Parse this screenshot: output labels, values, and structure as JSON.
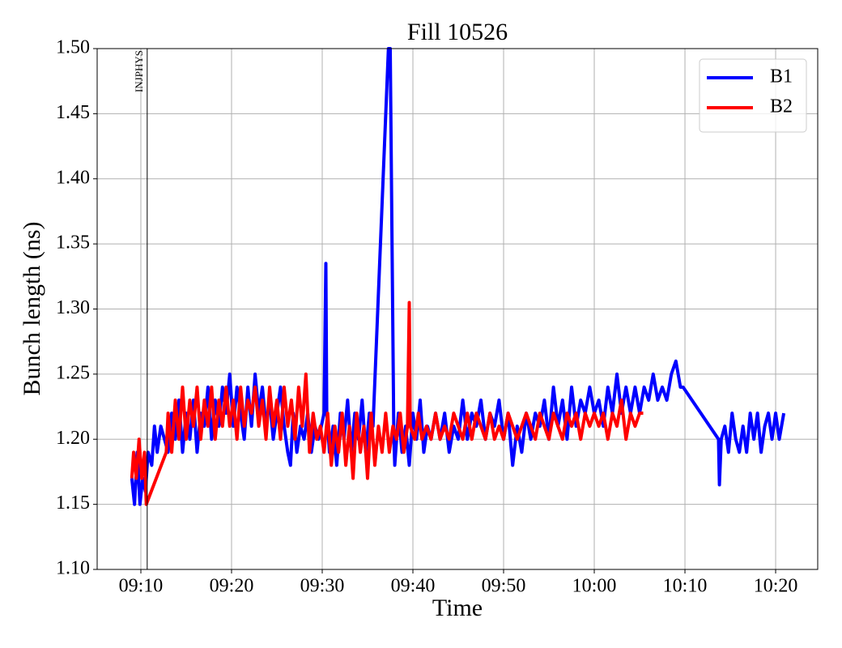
{
  "chart_data": {
    "type": "line",
    "title": "Fill 10526",
    "x_label": "Time",
    "y_label": "Bunch length (ns)",
    "xlim": [
      545.18,
      624.64
    ],
    "ylim": [
      1.1,
      1.5
    ],
    "xticks": [
      {
        "value": 550,
        "label": "09:10"
      },
      {
        "value": 560,
        "label": "09:20"
      },
      {
        "value": 570,
        "label": "09:30"
      },
      {
        "value": 580,
        "label": "09:40"
      },
      {
        "value": 590,
        "label": "09:50"
      },
      {
        "value": 600,
        "label": "10:00"
      },
      {
        "value": 610,
        "label": "10:10"
      },
      {
        "value": 620,
        "label": "10:20"
      }
    ],
    "yticks": [
      {
        "value": 1.1,
        "label": "1.10"
      },
      {
        "value": 1.15,
        "label": "1.15"
      },
      {
        "value": 1.2,
        "label": "1.20"
      },
      {
        "value": 1.25,
        "label": "1.25"
      },
      {
        "value": 1.3,
        "label": "1.30"
      },
      {
        "value": 1.35,
        "label": "1.35"
      },
      {
        "value": 1.4,
        "label": "1.40"
      },
      {
        "value": 1.45,
        "label": "1.45"
      },
      {
        "value": 1.5,
        "label": "1.50"
      }
    ],
    "grid": true,
    "legend": "upper right",
    "annotations": [
      {
        "x": 550.7,
        "label": "INJPHYS"
      }
    ],
    "series": [
      {
        "name": "B1",
        "color": "#0000ff",
        "x": [
          549.0,
          549.3,
          549.6,
          549.9,
          550.2,
          550.5,
          550.8,
          551.2,
          551.5,
          551.8,
          552.2,
          552.6,
          553.0,
          553.4,
          553.8,
          554.2,
          554.6,
          555.0,
          555.4,
          555.8,
          556.2,
          556.6,
          557.0,
          557.4,
          557.8,
          558.2,
          558.6,
          559.0,
          559.4,
          559.8,
          560.2,
          560.6,
          561.0,
          561.4,
          561.8,
          562.2,
          562.6,
          563.0,
          563.4,
          563.8,
          564.2,
          564.6,
          565.0,
          565.4,
          565.8,
          566.2,
          566.5,
          566.8,
          567.2,
          567.6,
          568.0,
          568.4,
          568.8,
          569.2,
          569.6,
          570.2,
          570.4,
          570.5,
          570.8,
          571.2,
          571.6,
          572.0,
          572.4,
          572.8,
          573.2,
          573.6,
          574.0,
          574.4,
          574.8,
          575.2,
          575.6,
          577.3,
          577.5,
          577.9,
          578.0,
          578.4,
          578.8,
          579.2,
          579.6,
          580.0,
          580.4,
          580.8,
          581.2,
          581.6,
          582.0,
          582.5,
          583,
          583.5,
          584,
          584.5,
          585,
          585.5,
          586,
          586.5,
          587,
          587.5,
          588,
          588.5,
          589,
          589.5,
          590,
          590.5,
          591,
          591.5,
          592,
          592.5,
          593,
          593.5,
          594,
          594.5,
          595,
          595.5,
          596,
          596.5,
          597,
          597.5,
          598,
          598.5,
          599,
          599.5,
          600,
          600.5,
          601,
          601.5,
          602,
          602.5,
          603,
          603.5,
          604,
          604.5,
          605,
          605.5,
          606,
          606.5,
          607,
          607.5,
          608,
          608.5,
          609,
          609.5,
          609.8,
          613.7,
          613.8,
          614.0,
          614.4,
          614.8,
          615.2,
          615.6,
          616,
          616.4,
          616.8,
          617.2,
          617.6,
          618,
          618.4,
          618.8,
          619.2,
          619.6,
          620,
          620.4,
          620.9
        ],
        "values": [
          1.17,
          1.15,
          1.19,
          1.15,
          1.17,
          1.16,
          1.19,
          1.18,
          1.21,
          1.19,
          1.21,
          1.2,
          1.19,
          1.22,
          1.2,
          1.23,
          1.19,
          1.22,
          1.2,
          1.23,
          1.19,
          1.22,
          1.21,
          1.24,
          1.2,
          1.23,
          1.21,
          1.24,
          1.22,
          1.25,
          1.21,
          1.24,
          1.22,
          1.2,
          1.24,
          1.21,
          1.25,
          1.22,
          1.24,
          1.21,
          1.23,
          1.2,
          1.22,
          1.24,
          1.21,
          1.19,
          1.18,
          1.22,
          1.19,
          1.21,
          1.2,
          1.22,
          1.19,
          1.21,
          1.2,
          1.22,
          1.335,
          1.22,
          1.19,
          1.21,
          1.18,
          1.22,
          1.2,
          1.23,
          1.19,
          1.22,
          1.2,
          1.23,
          1.19,
          1.22,
          1.21,
          1.5,
          1.5,
          1.2,
          1.18,
          1.22,
          1.19,
          1.21,
          1.18,
          1.22,
          1.2,
          1.23,
          1.19,
          1.21,
          1.2,
          1.22,
          1.2,
          1.22,
          1.19,
          1.21,
          1.2,
          1.23,
          1.2,
          1.22,
          1.21,
          1.23,
          1.2,
          1.22,
          1.21,
          1.23,
          1.2,
          1.22,
          1.18,
          1.21,
          1.19,
          1.22,
          1.2,
          1.22,
          1.21,
          1.23,
          1.2,
          1.24,
          1.21,
          1.23,
          1.2,
          1.24,
          1.21,
          1.23,
          1.22,
          1.24,
          1.22,
          1.23,
          1.21,
          1.24,
          1.22,
          1.25,
          1.22,
          1.24,
          1.22,
          1.24,
          1.22,
          1.24,
          1.23,
          1.25,
          1.23,
          1.24,
          1.23,
          1.25,
          1.26,
          1.24,
          1.24,
          1.2,
          1.165,
          1.2,
          1.21,
          1.19,
          1.22,
          1.2,
          1.19,
          1.21,
          1.19,
          1.22,
          1.2,
          1.22,
          1.19,
          1.21,
          1.22,
          1.2,
          1.22,
          1.2,
          1.22
        ]
      },
      {
        "name": "B2",
        "color": "#ff0000",
        "x": [
          549.0,
          549.2,
          549.5,
          549.8,
          550.1,
          550.4,
          550.6,
          552.8,
          553.0,
          553.4,
          553.8,
          554.2,
          554.6,
          555.0,
          555.4,
          555.8,
          556.2,
          556.6,
          557.0,
          557.4,
          557.8,
          558.2,
          558.6,
          559.0,
          559.4,
          559.8,
          560.2,
          560.6,
          561.0,
          561.4,
          561.8,
          562.2,
          562.6,
          563.0,
          563.4,
          563.8,
          564.2,
          564.6,
          565.0,
          565.4,
          565.8,
          566.2,
          566.6,
          567.0,
          567.4,
          567.8,
          568.2,
          568.6,
          569.0,
          569.4,
          569.8,
          570.2,
          570.6,
          571.0,
          571.4,
          571.8,
          572.2,
          572.6,
          573.0,
          573.4,
          573.8,
          574.2,
          574.6,
          575.0,
          575.4,
          575.8,
          576.2,
          576.6,
          577.0,
          577.4,
          577.8,
          578.2,
          578.6,
          579.0,
          579.4,
          579.6,
          579.7,
          580.2,
          580.6,
          581,
          581.5,
          582,
          582.5,
          583,
          583.5,
          584,
          584.5,
          585,
          585.5,
          586,
          586.5,
          587,
          587.5,
          588,
          588.5,
          589,
          589.5,
          590,
          590.5,
          591,
          591.5,
          592,
          592.5,
          593,
          593.5,
          594,
          594.5,
          595,
          595.5,
          596,
          596.5,
          597,
          597.5,
          598,
          598.5,
          599,
          599.5,
          600,
          600.5,
          601,
          601.5,
          602,
          602.5,
          603,
          603.5,
          604,
          604.5,
          605,
          605.4
        ],
        "values": [
          1.17,
          1.19,
          1.17,
          1.2,
          1.17,
          1.19,
          1.15,
          1.19,
          1.22,
          1.19,
          1.23,
          1.2,
          1.24,
          1.2,
          1.23,
          1.21,
          1.24,
          1.2,
          1.23,
          1.21,
          1.24,
          1.2,
          1.23,
          1.21,
          1.24,
          1.21,
          1.23,
          1.2,
          1.24,
          1.21,
          1.23,
          1.22,
          1.24,
          1.21,
          1.23,
          1.2,
          1.24,
          1.21,
          1.23,
          1.2,
          1.24,
          1.21,
          1.23,
          1.2,
          1.24,
          1.21,
          1.25,
          1.19,
          1.22,
          1.2,
          1.21,
          1.19,
          1.22,
          1.18,
          1.21,
          1.19,
          1.22,
          1.18,
          1.21,
          1.17,
          1.22,
          1.19,
          1.21,
          1.17,
          1.22,
          1.18,
          1.21,
          1.19,
          1.22,
          1.19,
          1.21,
          1.2,
          1.22,
          1.19,
          1.21,
          1.305,
          1.21,
          1.2,
          1.22,
          1.2,
          1.21,
          1.2,
          1.22,
          1.2,
          1.21,
          1.2,
          1.22,
          1.21,
          1.2,
          1.22,
          1.2,
          1.22,
          1.21,
          1.2,
          1.22,
          1.2,
          1.21,
          1.2,
          1.22,
          1.21,
          1.2,
          1.21,
          1.22,
          1.21,
          1.2,
          1.22,
          1.21,
          1.2,
          1.22,
          1.21,
          1.2,
          1.22,
          1.21,
          1.22,
          1.2,
          1.22,
          1.21,
          1.22,
          1.21,
          1.22,
          1.2,
          1.22,
          1.21,
          1.23,
          1.2,
          1.22,
          1.21,
          1.22,
          1.22
        ]
      }
    ]
  }
}
